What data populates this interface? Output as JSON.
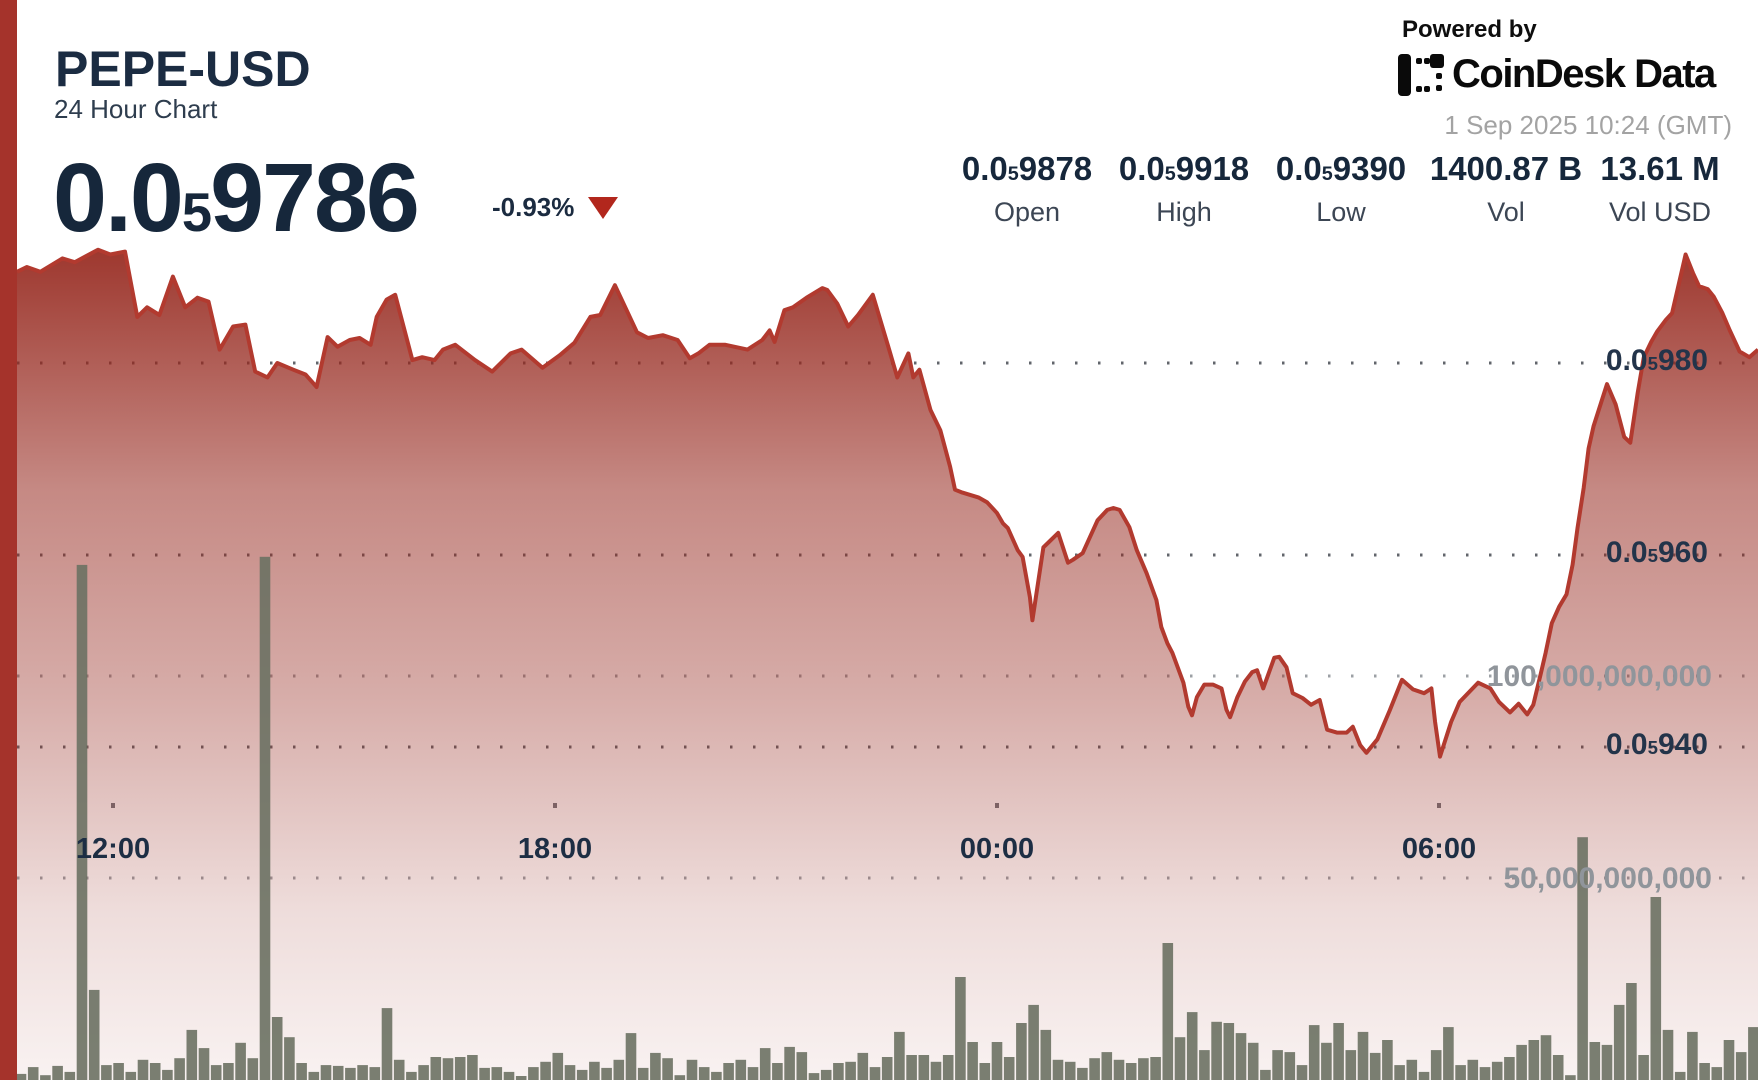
{
  "header": {
    "symbol": "PEPE-USD",
    "subtitle": "24 Hour Chart",
    "price": {
      "prefix": "0.0",
      "sub": "5",
      "digits": "9786"
    },
    "change": {
      "label": "-0.93%",
      "direction": "down"
    }
  },
  "branding": {
    "powered_by": "Powered by",
    "logo_text": "CoinDesk Data",
    "timestamp": "1 Sep 2025 10:24 (GMT)"
  },
  "stats": [
    {
      "prefix": "0.0",
      "sub": "5",
      "digits": "9878",
      "label": "Open"
    },
    {
      "prefix": "0.0",
      "sub": "5",
      "digits": "9918",
      "label": "High"
    },
    {
      "prefix": "0.0",
      "sub": "5",
      "digits": "9390",
      "label": "Low"
    },
    {
      "prefix": "",
      "sub": "",
      "digits": "1400.87 B",
      "label": "Vol"
    },
    {
      "prefix": "",
      "sub": "",
      "digits": "13.61 M",
      "label": "Vol USD"
    }
  ],
  "chart_data": {
    "type": "area+bar",
    "title": "PEPE-USD 24 Hour Chart",
    "price_unit": "1e-8 USD (0.0_5 scale)",
    "open": 987.8,
    "high": 991.8,
    "low": 939.0,
    "last": 978.6,
    "price_gridlines": [
      {
        "value": 980,
        "prefix": "0.0",
        "sub": "5",
        "digits": "980"
      },
      {
        "value": 960,
        "prefix": "0.0",
        "sub": "5",
        "digits": "960"
      },
      {
        "value": 940,
        "prefix": "0.0",
        "sub": "5",
        "digits": "940"
      }
    ],
    "volume_gridlines": [
      {
        "value_billions": 100,
        "label": "100,000,000,000"
      },
      {
        "value_billions": 50,
        "label": "50,000,000,000"
      }
    ],
    "time_ticks": [
      "12:00",
      "18:00",
      "00:00",
      "06:00"
    ],
    "price_series_t_min_price": [
      [
        0,
        989.5
      ],
      [
        8,
        990
      ],
      [
        19,
        989.5
      ],
      [
        37,
        990.9
      ],
      [
        47,
        990.5
      ],
      [
        66,
        991.8
      ],
      [
        76,
        991.3
      ],
      [
        88,
        991.6
      ],
      [
        98,
        984.8
      ],
      [
        106,
        985.8
      ],
      [
        116,
        985
      ],
      [
        127,
        989
      ],
      [
        137,
        985.8
      ],
      [
        147,
        986.8
      ],
      [
        156,
        986.4
      ],
      [
        165,
        981.4
      ],
      [
        176,
        983.8
      ],
      [
        186,
        984
      ],
      [
        194,
        979.1
      ],
      [
        204,
        978.5
      ],
      [
        212,
        980
      ],
      [
        225,
        979.3
      ],
      [
        235,
        978.8
      ],
      [
        244,
        977.5
      ],
      [
        253,
        982.7
      ],
      [
        261,
        981.7
      ],
      [
        271,
        982.4
      ],
      [
        279,
        982.6
      ],
      [
        288,
        981.9
      ],
      [
        293,
        984.8
      ],
      [
        301,
        986.6
      ],
      [
        308,
        987.1
      ],
      [
        322,
        980.3
      ],
      [
        330,
        980.6
      ],
      [
        340,
        980.3
      ],
      [
        347,
        981.4
      ],
      [
        357,
        981.9
      ],
      [
        373,
        980.3
      ],
      [
        387,
        979.1
      ],
      [
        402,
        981
      ],
      [
        411,
        981.4
      ],
      [
        428,
        979.5
      ],
      [
        442,
        980.8
      ],
      [
        454,
        982.1
      ],
      [
        467,
        984.8
      ],
      [
        475,
        985
      ],
      [
        487,
        988.1
      ],
      [
        505,
        983.2
      ],
      [
        514,
        982.6
      ],
      [
        526,
        982.9
      ],
      [
        538,
        982.4
      ],
      [
        548,
        980.5
      ],
      [
        555,
        981
      ],
      [
        564,
        981.9
      ],
      [
        577,
        981.9
      ],
      [
        595,
        981.4
      ],
      [
        607,
        982.4
      ],
      [
        613,
        983.4
      ],
      [
        617,
        982.2
      ],
      [
        625,
        985.5
      ],
      [
        632,
        985.8
      ],
      [
        643,
        986.8
      ],
      [
        656,
        987.8
      ],
      [
        660,
        987.6
      ],
      [
        668,
        986.2
      ],
      [
        677,
        983.8
      ],
      [
        685,
        985
      ],
      [
        697,
        987.1
      ],
      [
        711,
        981.1
      ],
      [
        717,
        978.5
      ],
      [
        726,
        981
      ],
      [
        730,
        978.5
      ],
      [
        735,
        979.3
      ],
      [
        744,
        975.1
      ],
      [
        752,
        973
      ],
      [
        760,
        969.2
      ],
      [
        764,
        966.8
      ],
      [
        770,
        966.5
      ],
      [
        783,
        966
      ],
      [
        790,
        965.5
      ],
      [
        798,
        964.4
      ],
      [
        803,
        963.3
      ],
      [
        807,
        962.8
      ],
      [
        815,
        960.5
      ],
      [
        819,
        959.8
      ],
      [
        825,
        955.6
      ],
      [
        827,
        953.2
      ],
      [
        836,
        960.8
      ],
      [
        840,
        961.3
      ],
      [
        848,
        962.3
      ],
      [
        856,
        959.2
      ],
      [
        860,
        959.5
      ],
      [
        868,
        960.2
      ],
      [
        880,
        963.6
      ],
      [
        888,
        964.7
      ],
      [
        893,
        964.9
      ],
      [
        898,
        964.7
      ],
      [
        906,
        962.9
      ],
      [
        912,
        960.5
      ],
      [
        920,
        958.1
      ],
      [
        928,
        955.3
      ],
      [
        932,
        952.5
      ],
      [
        937,
        950.8
      ],
      [
        941,
        949.8
      ],
      [
        950,
        946.7
      ],
      [
        954,
        944.2
      ],
      [
        957,
        943.3
      ],
      [
        961,
        945.2
      ],
      [
        967,
        946.5
      ],
      [
        974,
        946.5
      ],
      [
        981,
        946.1
      ],
      [
        985,
        943.9
      ],
      [
        988,
        943.1
      ],
      [
        994,
        945.2
      ],
      [
        1000,
        946.8
      ],
      [
        1006,
        947.8
      ],
      [
        1010,
        948
      ],
      [
        1015,
        946.1
      ],
      [
        1024,
        949.3
      ],
      [
        1028,
        949.4
      ],
      [
        1034,
        948.3
      ],
      [
        1039,
        945.6
      ],
      [
        1047,
        945.1
      ],
      [
        1054,
        944.4
      ],
      [
        1061,
        944.9
      ],
      [
        1067,
        941.8
      ],
      [
        1075,
        941.5
      ],
      [
        1083,
        941.5
      ],
      [
        1088,
        942.1
      ],
      [
        1094,
        940.2
      ],
      [
        1099,
        939.4
      ],
      [
        1108,
        940.8
      ],
      [
        1118,
        943.8
      ],
      [
        1128,
        947
      ],
      [
        1137,
        946
      ],
      [
        1146,
        945.6
      ],
      [
        1152,
        946.1
      ],
      [
        1155,
        942.6
      ],
      [
        1159,
        939
      ],
      [
        1168,
        942.6
      ],
      [
        1175,
        944.7
      ],
      [
        1190,
        946.7
      ],
      [
        1200,
        946.1
      ],
      [
        1207,
        944.7
      ],
      [
        1216,
        943.6
      ],
      [
        1223,
        944.5
      ],
      [
        1230,
        943.4
      ],
      [
        1235,
        944.4
      ],
      [
        1241,
        947.6
      ],
      [
        1245,
        949.8
      ],
      [
        1250,
        952.9
      ],
      [
        1256,
        954.6
      ],
      [
        1262,
        955.9
      ],
      [
        1267,
        959
      ],
      [
        1271,
        962.8
      ],
      [
        1276,
        967
      ],
      [
        1280,
        971.1
      ],
      [
        1284,
        973.4
      ],
      [
        1295,
        977.8
      ],
      [
        1302,
        975.7
      ],
      [
        1309,
        972.3
      ],
      [
        1314,
        971.7
      ],
      [
        1320,
        976.9
      ],
      [
        1325,
        980.6
      ],
      [
        1331,
        982.2
      ],
      [
        1336,
        983.3
      ],
      [
        1343,
        984.5
      ],
      [
        1348,
        985.2
      ],
      [
        1359,
        991.3
      ],
      [
        1365,
        989.4
      ],
      [
        1370,
        988
      ],
      [
        1377,
        987.7
      ],
      [
        1382,
        986.9
      ],
      [
        1389,
        985.2
      ],
      [
        1395,
        983.4
      ],
      [
        1403,
        981.2
      ],
      [
        1411,
        980.6
      ],
      [
        1418,
        981.4
      ]
    ],
    "volume_10min_billions": [
      2.5,
      1.5,
      3.2,
      1.2,
      3.5,
      2,
      127.5,
      22.3,
      3.7,
      4.2,
      2,
      5,
      4.2,
      2.5,
      5.4,
      12.4,
      7.9,
      3.7,
      4.2,
      9.2,
      5.4,
      129.5,
      15.6,
      10.6,
      4.2,
      2,
      3.7,
      3.5,
      3,
      3.7,
      3.2,
      17.8,
      5,
      2,
      3.7,
      5.7,
      5.4,
      5.7,
      6.2,
      3,
      3.2,
      2,
      1,
      3.2,
      4.5,
      6.7,
      3.7,
      2.5,
      4.5,
      3,
      5,
      11.6,
      3,
      6.7,
      5.4,
      1.2,
      5,
      3.2,
      2,
      4.2,
      5,
      3.2,
      7.9,
      4.2,
      8.2,
      6.9,
      1.7,
      2.5,
      4.2,
      4.5,
      6.7,
      3.2,
      5.7,
      11.9,
      6.2,
      6.2,
      4.5,
      6.2,
      25.5,
      9.4,
      4.2,
      9.4,
      5.7,
      14.1,
      18.6,
      12.4,
      5,
      4.5,
      3,
      5.4,
      6.9,
      5,
      4.2,
      5.4,
      5.7,
      33.9,
      10.6,
      16.8,
      7.4,
      14.4,
      14.1,
      11.6,
      9.2,
      2.5,
      7.4,
      6.9,
      3.7,
      13.6,
      9.2,
      14.1,
      7.4,
      11.9,
      6.7,
      9.9,
      3.7,
      5,
      2,
      7.4,
      13.1,
      3.7,
      5,
      3.2,
      4.5,
      5.7,
      8.7,
      9.9,
      11.1,
      6.2,
      1.2,
      60.1,
      9.4,
      8.7,
      18.6,
      24,
      6.2,
      45.3,
      12.4,
      2,
      11.9,
      4.2,
      3.2,
      9.9,
      6.9,
      13.1
    ],
    "legend": "none",
    "grid": "dotted horizontal"
  },
  "colors": {
    "accent_bar": "#a5332b",
    "line": "#b23a2f",
    "area_base": "rgb(150,40,30)",
    "volume_bar": "#6b7163",
    "negative": "#b2271d",
    "dark_text": "#16273b",
    "gray_text": "#a3a3a3"
  }
}
